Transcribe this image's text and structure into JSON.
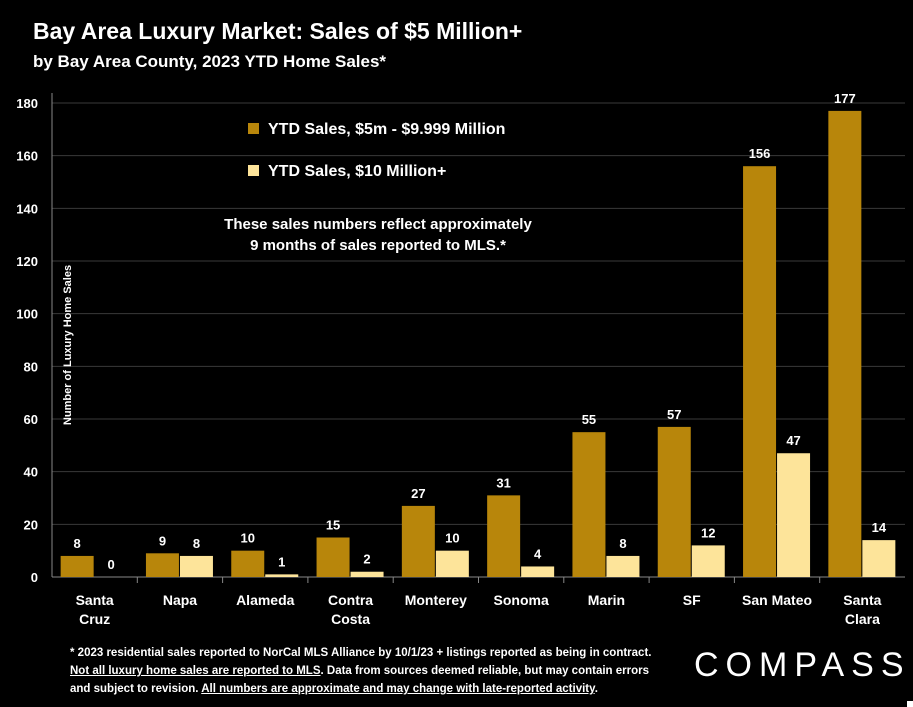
{
  "header": {
    "title": "Bay Area Luxury Market: Sales of $5 Million+",
    "subtitle": "by Bay Area County, 2023 YTD Home Sales*"
  },
  "annotation": {
    "line1": "These sales numbers reflect approximately",
    "line2": "9 months of sales reported to MLS.*"
  },
  "footnote": {
    "line1": "* 2023 residential sales reported to NorCal MLS Alliance by 10/1/23 + listings reported as being in contract.",
    "line2_underlined": "Not all luxury home sales are reported to MLS",
    "line2_rest": ". Data from sources deemed reliable, but may contain errors",
    "line3_start": "and subject to revision. ",
    "line3_underlined": "All numbers are approximate and may change with late-reported activity",
    "line3_end": "."
  },
  "logo": {
    "text": "COMPASS"
  },
  "colors": {
    "series1": "#b8860b",
    "series2": "#fde49a",
    "background": "#000000",
    "grid": "#3a3a3a",
    "text": "#ffffff"
  },
  "chart_data": {
    "type": "bar",
    "ylabel": "Number of Luxury Home Sales",
    "ylim": [
      0,
      180
    ],
    "yticks": [
      0,
      20,
      40,
      60,
      80,
      100,
      120,
      140,
      160,
      180
    ],
    "grid": true,
    "legend_position": "top-left",
    "categories": [
      [
        "Santa",
        "Cruz"
      ],
      [
        "Napa"
      ],
      [
        "Alameda"
      ],
      [
        "Contra",
        "Costa"
      ],
      [
        "Monterey"
      ],
      [
        "Sonoma"
      ],
      [
        "Marin"
      ],
      [
        "SF"
      ],
      [
        "San Mateo"
      ],
      [
        "Santa",
        "Clara"
      ]
    ],
    "series": [
      {
        "name": "YTD Sales, $5m - $9.999 Million",
        "values": [
          8,
          9,
          10,
          15,
          27,
          31,
          55,
          57,
          156,
          177
        ]
      },
      {
        "name": "YTD Sales, $10 Million+",
        "values": [
          0,
          8,
          1,
          2,
          10,
          4,
          8,
          12,
          47,
          14
        ]
      }
    ]
  }
}
